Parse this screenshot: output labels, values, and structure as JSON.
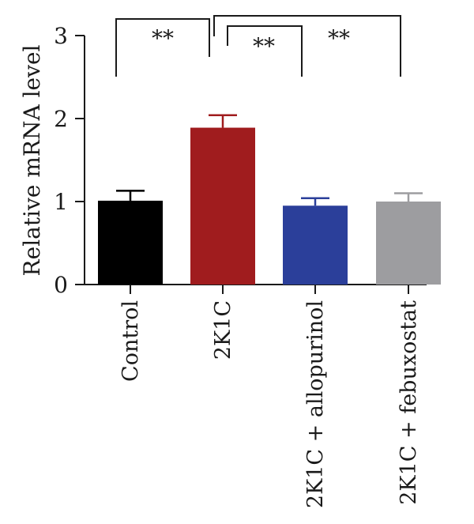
{
  "chart_data": {
    "type": "bar",
    "categories": [
      "Control",
      "2K1C",
      "2K1C + allopurinol",
      "2K1C + febuxostat"
    ],
    "values": [
      1.01,
      1.89,
      0.95,
      1.0
    ],
    "errors": [
      0.12,
      0.15,
      0.09,
      0.1
    ],
    "colors": [
      "#000000",
      "#a01c1e",
      "#2b3f9a",
      "#9d9da0"
    ],
    "ylabel": "Relative mRNA level",
    "ylim": [
      0,
      3
    ],
    "yticks": [
      "0",
      "1",
      "2",
      "3"
    ],
    "grid": false,
    "significance": [
      {
        "from": 0,
        "to": 1,
        "label": "**"
      },
      {
        "from": 1,
        "to": 2,
        "label": "**"
      },
      {
        "from": 1,
        "to": 3,
        "label": "**"
      }
    ]
  }
}
